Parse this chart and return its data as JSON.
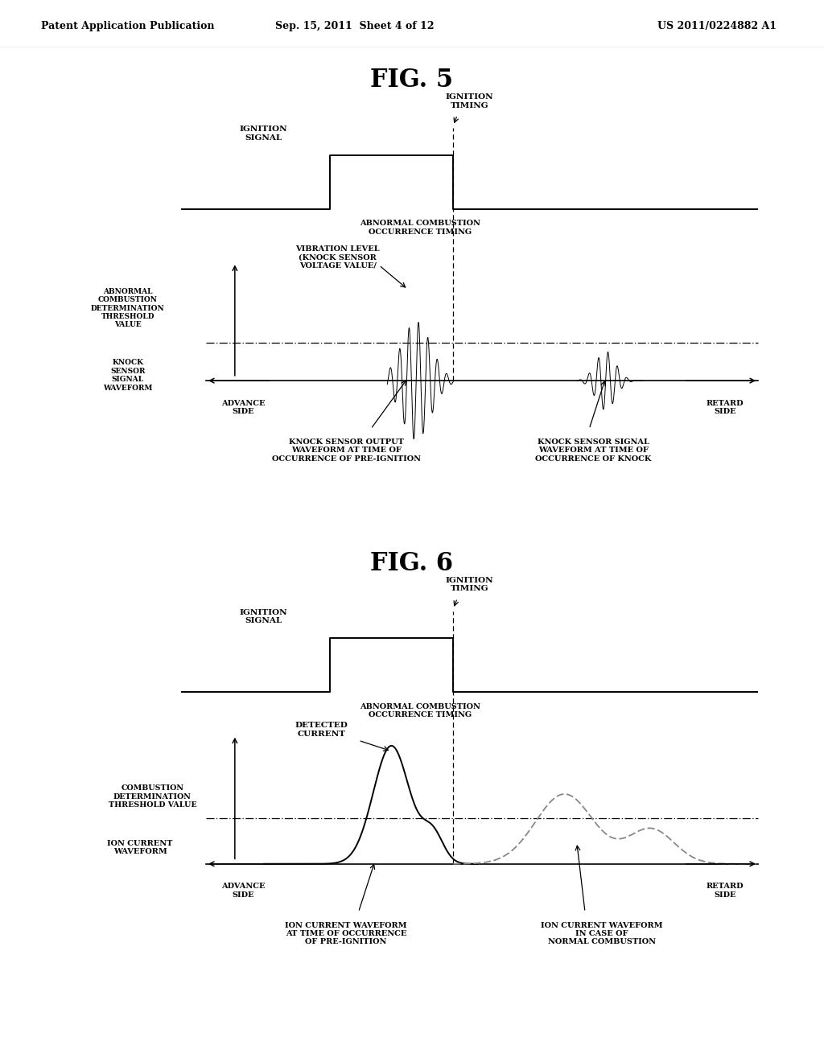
{
  "fig_title1": "FIG. 5",
  "fig_title2": "FIG. 6",
  "header_left": "Patent Application Publication",
  "header_mid": "Sep. 15, 2011  Sheet 4 of 12",
  "header_right": "US 2011/0224882 A1",
  "bg_color": "#ffffff",
  "line_color": "#000000"
}
